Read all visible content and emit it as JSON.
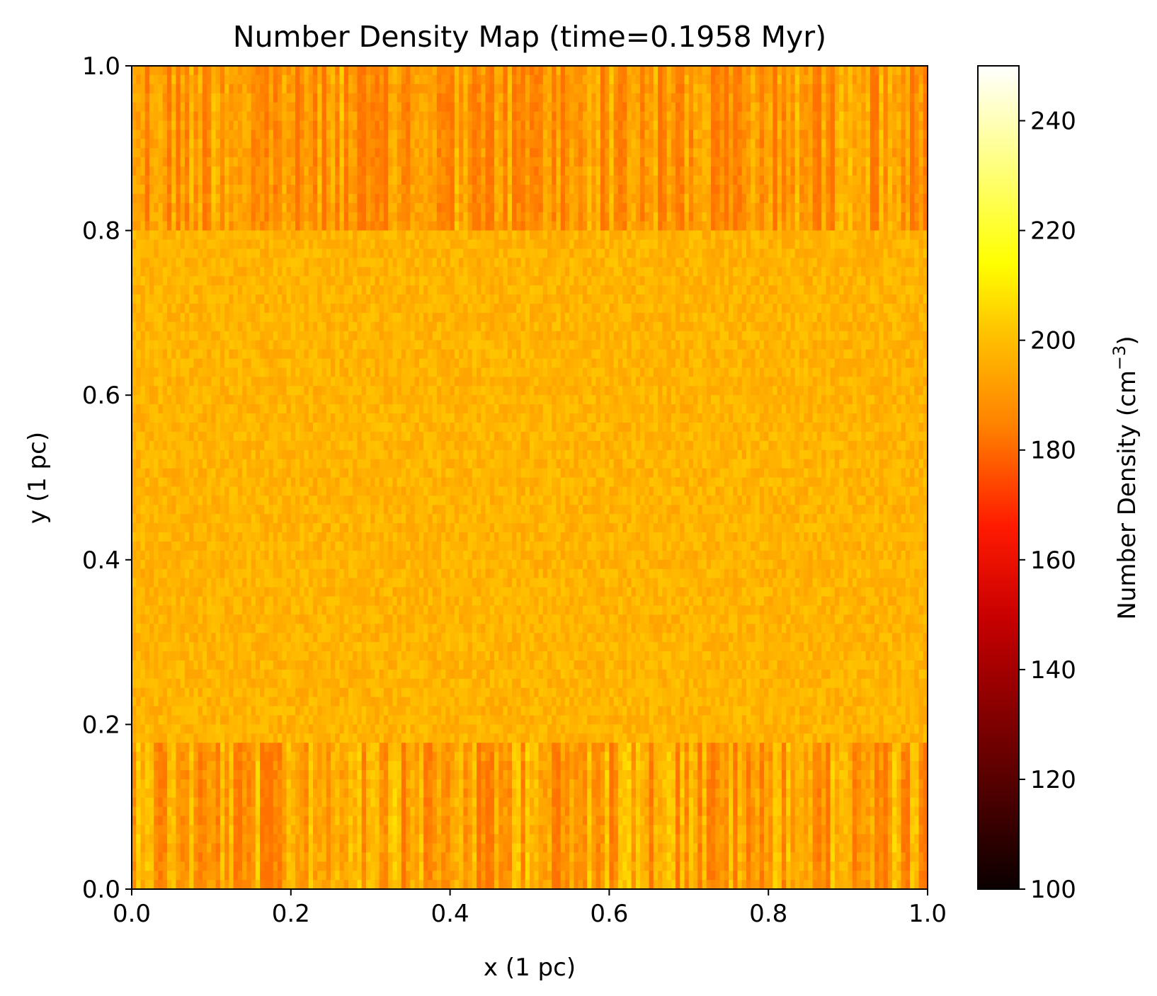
{
  "chart_data": {
    "type": "heatmap",
    "title": "Number Density Map (time=0.1958 Myr)",
    "xlabel": "x (1 pc)",
    "ylabel": "y (1 pc)",
    "xlim": [
      0.0,
      1.0
    ],
    "ylim": [
      0.0,
      1.0
    ],
    "xticks": [
      "0.0",
      "0.2",
      "0.4",
      "0.6",
      "0.8",
      "1.0"
    ],
    "yticks": [
      "0.0",
      "0.2",
      "0.4",
      "0.6",
      "0.8",
      "1.0"
    ],
    "colormap": "hot",
    "colorbar": {
      "label": "Number Density (cm",
      "label_superscript": "−3",
      "label_close": ")",
      "vmin": 100,
      "vmax": 250,
      "ticks": [
        "100",
        "120",
        "140",
        "160",
        "180",
        "200",
        "220",
        "240"
      ]
    },
    "field": {
      "description_levels": [
        {
          "y_range": [
            0.0,
            0.18
          ],
          "typical_density": 188
        },
        {
          "y_range": [
            0.18,
            0.8
          ],
          "typical_density": 195
        },
        {
          "y_range": [
            0.8,
            1.0
          ],
          "typical_density": 186
        }
      ],
      "min_observed": 180,
      "max_observed": 210
    },
    "grid": false,
    "legend": "none"
  }
}
